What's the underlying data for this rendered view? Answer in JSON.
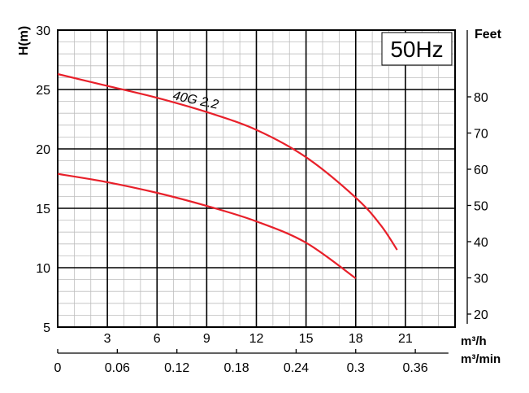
{
  "chart_data": {
    "type": "line",
    "badge": "50Hz",
    "ylabel": "H(m)",
    "ylabel_right": "Feet",
    "xunit_top": "m³/h",
    "xunit_bottom": "m³/min",
    "ylim": [
      5,
      30
    ],
    "xlim": [
      0,
      24
    ],
    "y_ticks": [
      "5",
      "10",
      "15",
      "20",
      "25",
      "30"
    ],
    "x_ticks_top": [
      "3",
      "6",
      "9",
      "12",
      "15",
      "18",
      "21"
    ],
    "x_ticks_bottom": [
      "0",
      "0.06",
      "0.12",
      "0.18",
      "0.24",
      "0.3",
      "0.36"
    ],
    "feet_ticks": [
      "20",
      "30",
      "40",
      "50",
      "60",
      "70",
      "80"
    ],
    "grid": true,
    "series": [
      {
        "name": "40G 2.2",
        "x": [
          0,
          3,
          6,
          9,
          12,
          15,
          18,
          19.5,
          20.5
        ],
        "y": [
          26.3,
          25.3,
          24.3,
          23.1,
          21.6,
          19.3,
          15.9,
          13.6,
          11.5
        ]
      },
      {
        "x": [
          0,
          3,
          6,
          9,
          12,
          15,
          18
        ],
        "y": [
          17.9,
          17.2,
          16.3,
          15.2,
          13.9,
          12.1,
          9.1
        ]
      }
    ],
    "curve_color": "#e8202a",
    "badge_color": "#1f5f9e"
  }
}
